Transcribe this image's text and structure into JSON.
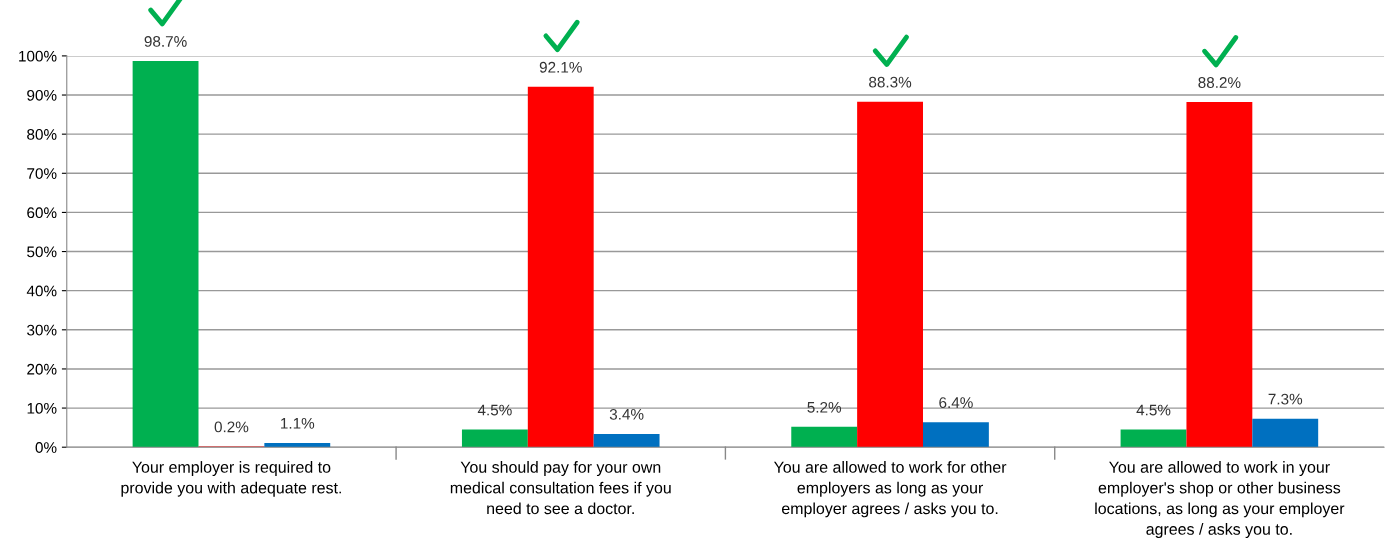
{
  "chart_data": {
    "type": "bar",
    "categories": [
      "Your employer is required to\nprovide you with adequate rest.",
      "You should pay for your own\nmedical consultation fees if you\nneed to see a doctor.",
      "You are allowed to work for other\nemployers as long as your\nemployer agrees / asks you to.",
      "You are allowed to work in your\nemployer's shop or other business\nlocations, as long as your employer\nagrees / asks you to."
    ],
    "series": [
      {
        "color": "#00b050",
        "values": [
          98.7,
          4.5,
          5.2,
          4.5
        ],
        "value_labels": [
          "98.7%",
          "4.5%",
          "5.2%",
          "4.5%"
        ]
      },
      {
        "color": "#ff0000",
        "values": [
          0.2,
          92.1,
          88.3,
          88.2
        ],
        "value_labels": [
          "0.2%",
          "92.1%",
          "88.3%",
          "88.2%"
        ]
      },
      {
        "color": "#0070c0",
        "values": [
          1.1,
          3.4,
          6.4,
          7.3
        ],
        "value_labels": [
          "1.1%",
          "3.4%",
          "6.4%",
          "7.3%"
        ]
      }
    ],
    "ylim": [
      0,
      100
    ],
    "yticks": [
      {
        "value": 0,
        "label": "0%"
      },
      {
        "value": 10,
        "label": "10%"
      },
      {
        "value": 20,
        "label": "20%"
      },
      {
        "value": 30,
        "label": "30%"
      },
      {
        "value": 40,
        "label": "40%"
      },
      {
        "value": 50,
        "label": "50%"
      },
      {
        "value": 60,
        "label": "60%"
      },
      {
        "value": 70,
        "label": "70%"
      },
      {
        "value": 80,
        "label": "80%"
      },
      {
        "value": 90,
        "label": "90%"
      },
      {
        "value": 100,
        "label": "100%"
      }
    ],
    "grid": "y"
  }
}
